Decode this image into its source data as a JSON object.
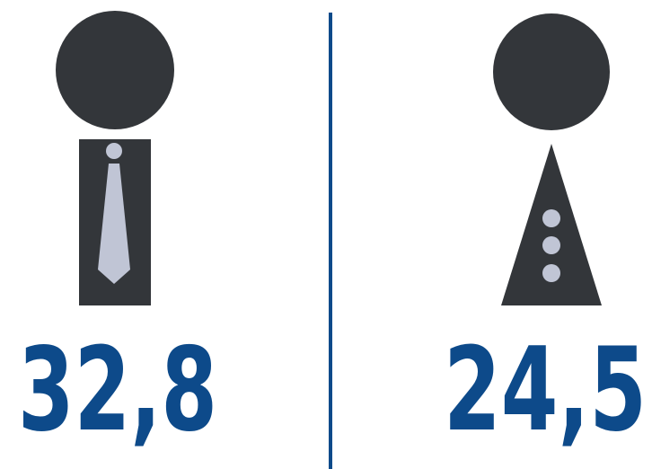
{
  "figures": [
    {
      "value": "32,8"
    },
    {
      "value": "24,5"
    }
  ]
}
